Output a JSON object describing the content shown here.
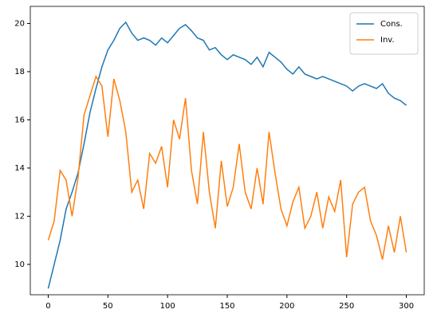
{
  "chart_data": {
    "type": "line",
    "x": [
      0,
      5,
      10,
      15,
      20,
      25,
      30,
      35,
      40,
      45,
      50,
      55,
      60,
      65,
      70,
      75,
      80,
      85,
      90,
      95,
      100,
      105,
      110,
      115,
      120,
      125,
      130,
      135,
      140,
      145,
      150,
      155,
      160,
      165,
      170,
      175,
      180,
      185,
      190,
      195,
      200,
      205,
      210,
      215,
      220,
      225,
      230,
      235,
      240,
      245,
      250,
      255,
      260,
      265,
      270,
      275,
      280,
      285,
      290,
      295,
      300
    ],
    "series": [
      {
        "name": "Cons.",
        "color": "#1f77b4",
        "values": [
          9.0,
          10.0,
          11.0,
          12.3,
          13.0,
          13.8,
          15.0,
          16.3,
          17.3,
          18.2,
          18.9,
          19.3,
          19.8,
          20.05,
          19.6,
          19.3,
          19.4,
          19.3,
          19.1,
          19.4,
          19.2,
          19.5,
          19.8,
          19.95,
          19.7,
          19.4,
          19.3,
          18.9,
          19.0,
          18.7,
          18.5,
          18.7,
          18.6,
          18.5,
          18.3,
          18.6,
          18.2,
          18.8,
          18.6,
          18.4,
          18.1,
          17.9,
          18.2,
          17.9,
          17.8,
          17.7,
          17.8,
          17.7,
          17.6,
          17.5,
          17.4,
          17.2,
          17.4,
          17.5,
          17.4,
          17.3,
          17.5,
          17.1,
          16.9,
          16.8,
          16.6
        ]
      },
      {
        "name": "Inv.",
        "color": "#ff7f0e",
        "values": [
          11.0,
          11.8,
          13.9,
          13.5,
          12.0,
          13.6,
          16.2,
          17.0,
          17.8,
          17.4,
          15.3,
          17.7,
          16.8,
          15.5,
          13.0,
          13.5,
          12.3,
          14.6,
          14.2,
          14.9,
          13.2,
          16.0,
          15.2,
          16.9,
          13.9,
          12.5,
          15.5,
          13.0,
          11.5,
          14.3,
          12.4,
          13.2,
          15.0,
          13.0,
          12.3,
          14.0,
          12.5,
          15.5,
          13.8,
          12.3,
          11.6,
          12.6,
          13.2,
          11.5,
          12.0,
          13.0,
          11.5,
          12.8,
          12.2,
          13.5,
          10.3,
          12.5,
          13.0,
          13.2,
          11.8,
          11.2,
          10.2,
          11.6,
          10.5,
          12.0,
          10.5
        ]
      }
    ],
    "xlim": [
      -15,
      315
    ],
    "ylim": [
      8.74,
      20.71
    ],
    "xticks": [
      0,
      50,
      100,
      150,
      200,
      250,
      300
    ],
    "yticks": [
      10,
      12,
      14,
      16,
      18,
      20
    ],
    "legend": "upper right"
  }
}
